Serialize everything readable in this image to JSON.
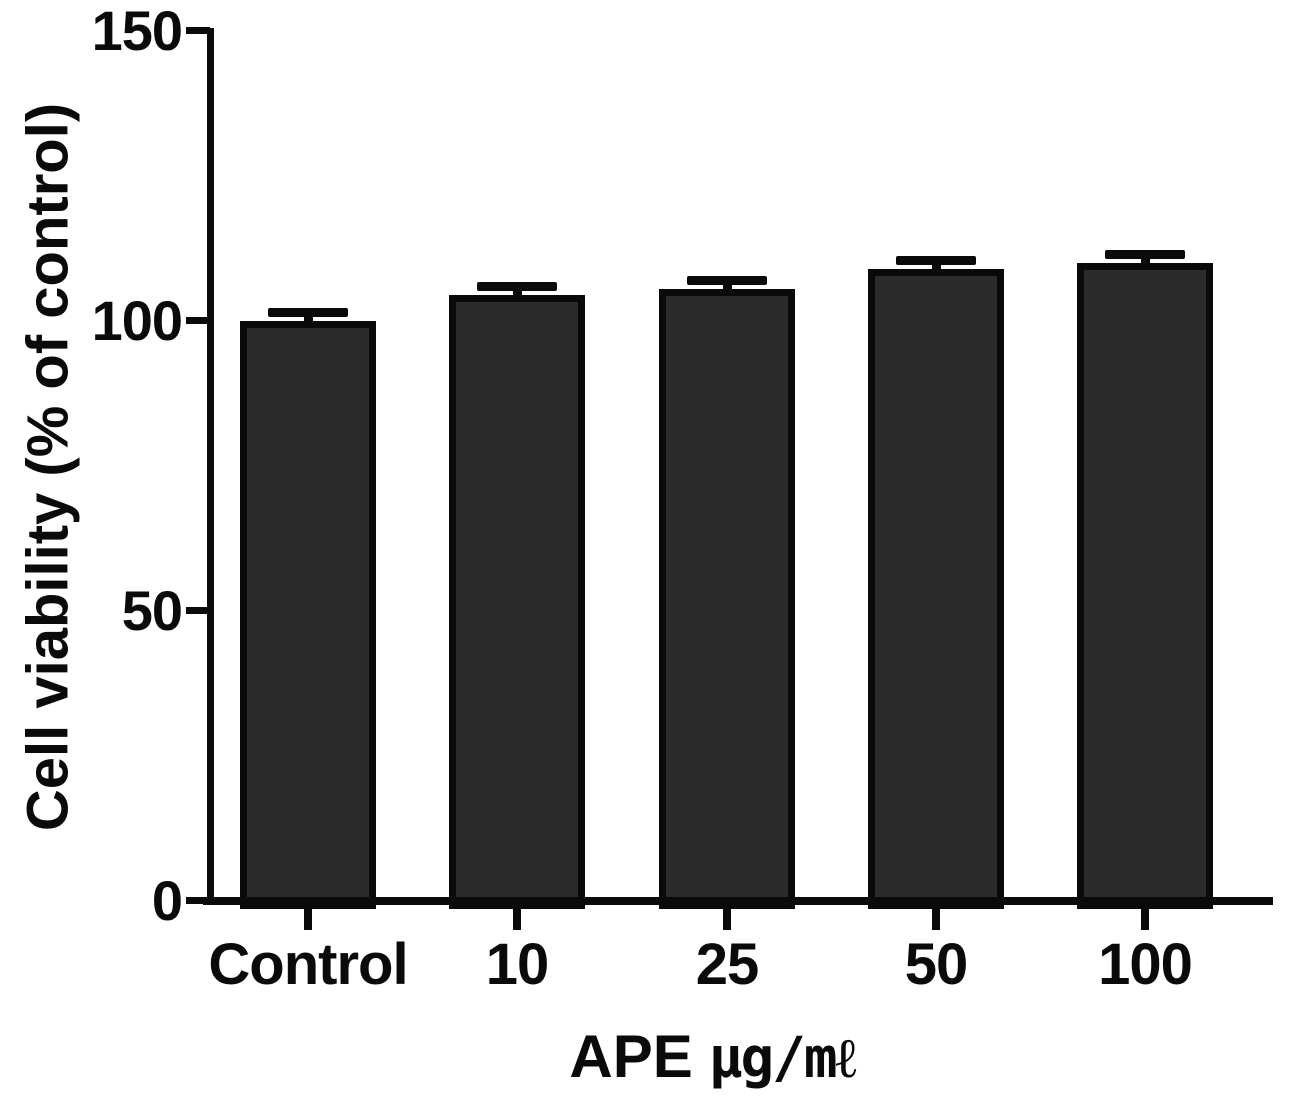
{
  "chart_data": {
    "type": "bar",
    "title": "",
    "categories": [
      "Control",
      "10",
      "25",
      "50",
      "100"
    ],
    "values": [
      100,
      104.5,
      105.5,
      109,
      110
    ],
    "errors_plus": [
      1.5,
      1.5,
      1.5,
      1.5,
      1.5
    ],
    "xlabel": "APE µg/mℓ",
    "xlabel_prefix": "APE",
    "xlabel_unit": "µg/mℓ",
    "ylabel": "Cell viability (% of control)",
    "ylim": [
      0,
      150
    ],
    "yticks": [
      0,
      50,
      100,
      150
    ],
    "bar_fill_color": "#2b2b2b",
    "bar_edge_color": "#0a0a0a",
    "axis_color": "#0a0a0a",
    "background_color": "#ffffff",
    "grid": false,
    "legend": "none"
  }
}
